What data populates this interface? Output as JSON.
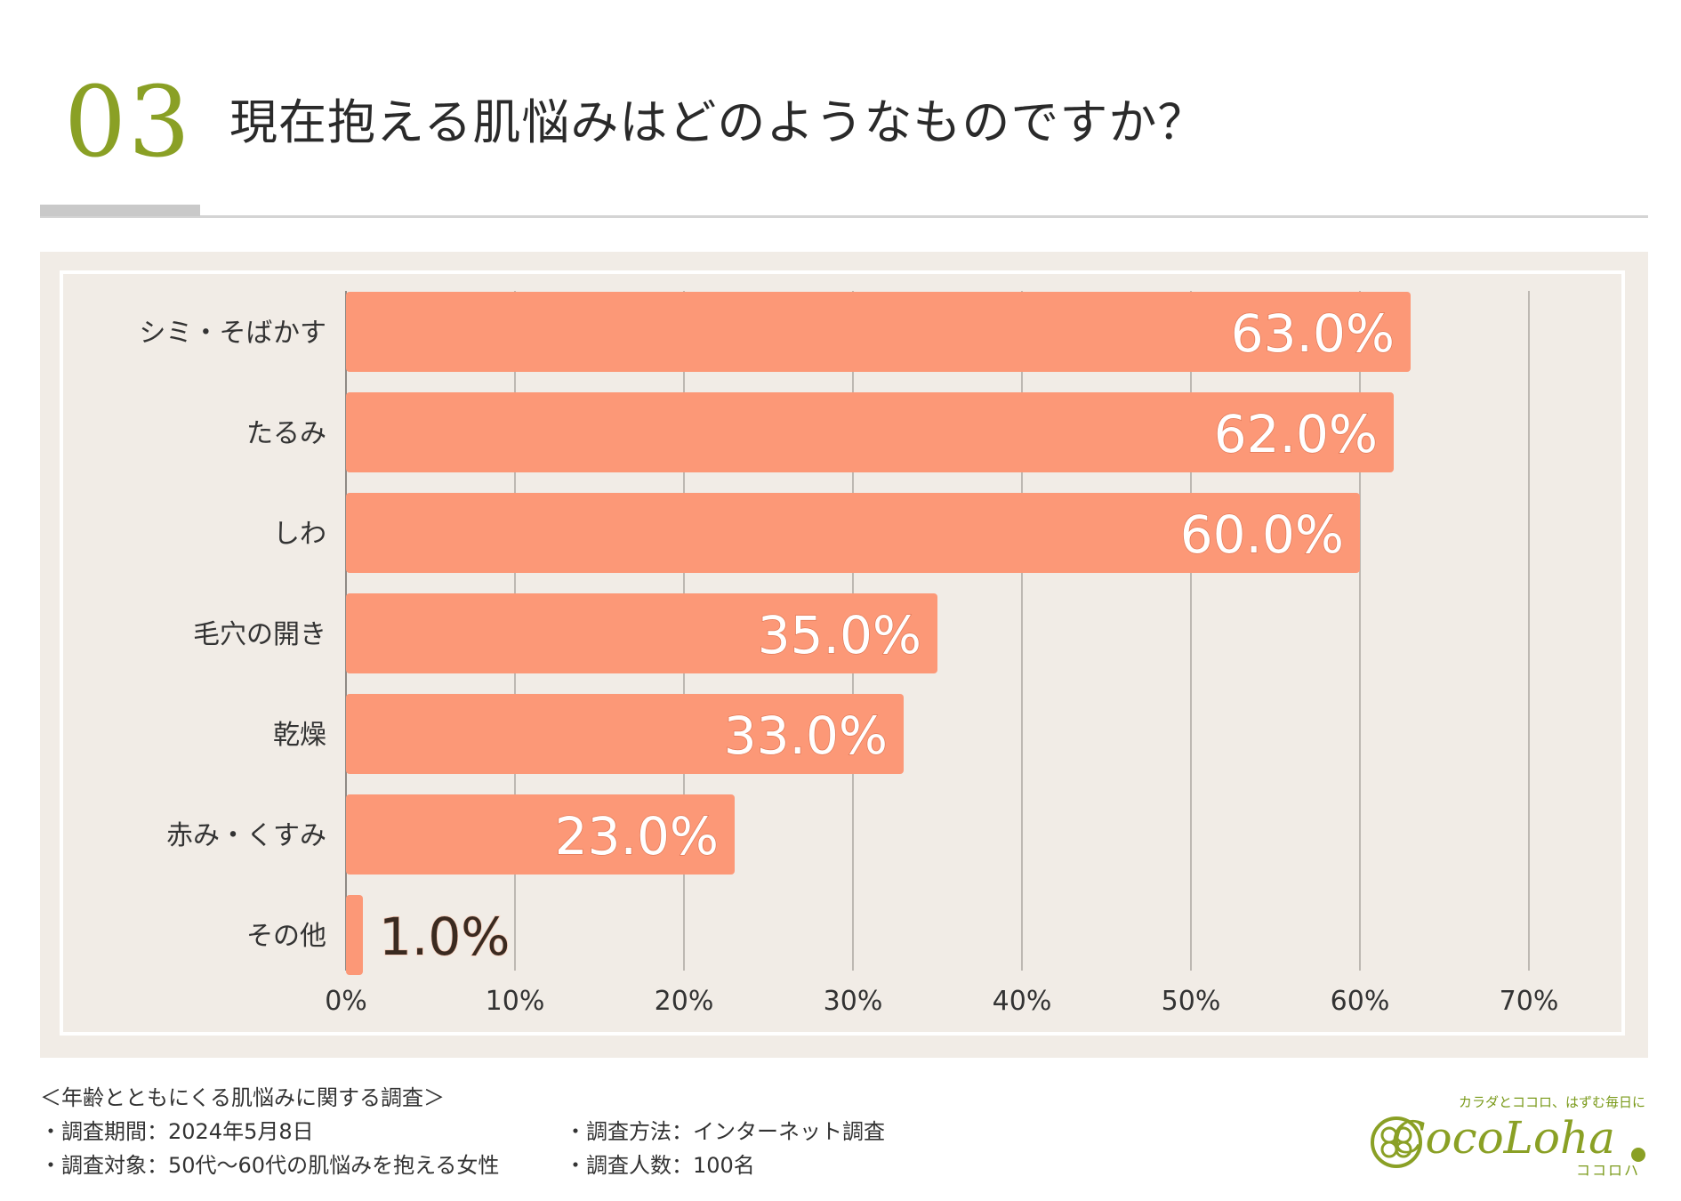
{
  "header": {
    "number": "03",
    "title": "現在抱える肌悩みはどのようなものですか？"
  },
  "chart_data": {
    "type": "bar",
    "orientation": "horizontal",
    "categories": [
      "シミ・そばかす",
      "たるみ",
      "しわ",
      "毛穴の開き",
      "乾燥",
      "赤み・くすみ",
      "その他"
    ],
    "values": [
      63.0,
      62.0,
      60.0,
      35.0,
      33.0,
      23.0,
      1.0
    ],
    "value_labels": [
      "63.0%",
      "62.0%",
      "60.0%",
      "35.0%",
      "33.0%",
      "23.0%",
      "1.0%"
    ],
    "xlim": [
      0,
      70
    ],
    "x_ticks": [
      "0%",
      "10%",
      "20%",
      "30%",
      "40%",
      "50%",
      "60%",
      "70%"
    ],
    "x_tick_values": [
      0,
      10,
      20,
      30,
      40,
      50,
      60,
      70
    ],
    "grid": true,
    "colors": {
      "bar": "#fc9877",
      "grid": "#bdb8b2",
      "panel": "#f1ece6",
      "label_inside": "#ffffff",
      "label_outside": "#3a2a20"
    }
  },
  "footer": {
    "survey_title": "＜年齢とともにくる肌悩みに関する調査＞",
    "period": "・調査期間：2024年5月8日",
    "target": "・調査対象：50代〜60代の肌悩みを抱える女性",
    "method": "・調査方法：インターネット調査",
    "count": "・調査人数：100名"
  },
  "logo": {
    "tagline": "カラダとココロ、はずむ毎日に",
    "brand": "CocoLoha",
    "kana": "ココロハ",
    "icon": "clover-icon"
  }
}
